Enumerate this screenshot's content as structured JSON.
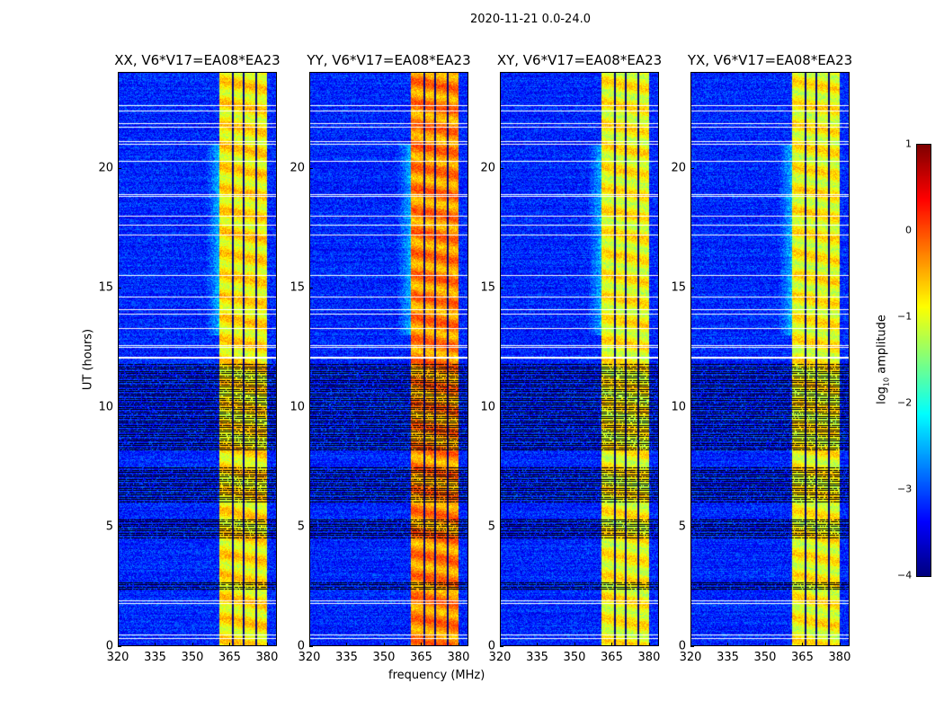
{
  "chart_data": {
    "type": "heatmap",
    "title": "2020-11-21 0.0-24.0",
    "xlabel": "frequency (MHz)",
    "ylabel": "UT (hours)",
    "xlim": [
      320,
      384
    ],
    "ylim": [
      0,
      24
    ],
    "xticks": [
      "320",
      "335",
      "350",
      "365",
      "380"
    ],
    "xtick_values": [
      320,
      335,
      350,
      365,
      380
    ],
    "yticks": [
      "0",
      "5",
      "10",
      "15",
      "20"
    ],
    "ytick_values": [
      0,
      5,
      10,
      15,
      20
    ],
    "panels": [
      {
        "title": "XX, V6*V17=EA08*EA23",
        "band_level": -0.8
      },
      {
        "title": "YY, V6*V17=EA08*EA23",
        "band_level": -0.3
      },
      {
        "title": "XY, V6*V17=EA08*EA23",
        "band_level": -0.9
      },
      {
        "title": "YX, V6*V17=EA08*EA23",
        "band_level": -0.9
      }
    ],
    "background_level": -3.2,
    "bright_band_mhz": [
      360.5,
      380
    ],
    "band_gaps_mhz": [
      366,
      370.5,
      375.5
    ],
    "flagged_white_hours": [
      0.35,
      0.5,
      1.8,
      1.9,
      12.05,
      12.1,
      12.5,
      12.6,
      13.3,
      13.9,
      14.1,
      14.6,
      15.5,
      17.2,
      17.6,
      18.0,
      18.8,
      18.9,
      20.3,
      21.0,
      21.1,
      21.7,
      21.85,
      22.4,
      22.6
    ],
    "flagged_black_ranges_hours": [
      [
        8.2,
        11.8
      ],
      [
        6.0,
        7.5
      ],
      [
        4.5,
        5.3
      ],
      [
        2.3,
        2.7
      ]
    ],
    "colorbar": {
      "label": "log10 amplitude",
      "label_main": "log",
      "label_sub": "10",
      "label_rest": " amplitude",
      "colormap": "jet",
      "clim": [
        -4,
        1
      ],
      "ticks": [
        "1",
        "0",
        "−1",
        "−2",
        "−3",
        "−4"
      ],
      "tick_values": [
        1,
        0,
        -1,
        -2,
        -3,
        -4
      ]
    }
  }
}
